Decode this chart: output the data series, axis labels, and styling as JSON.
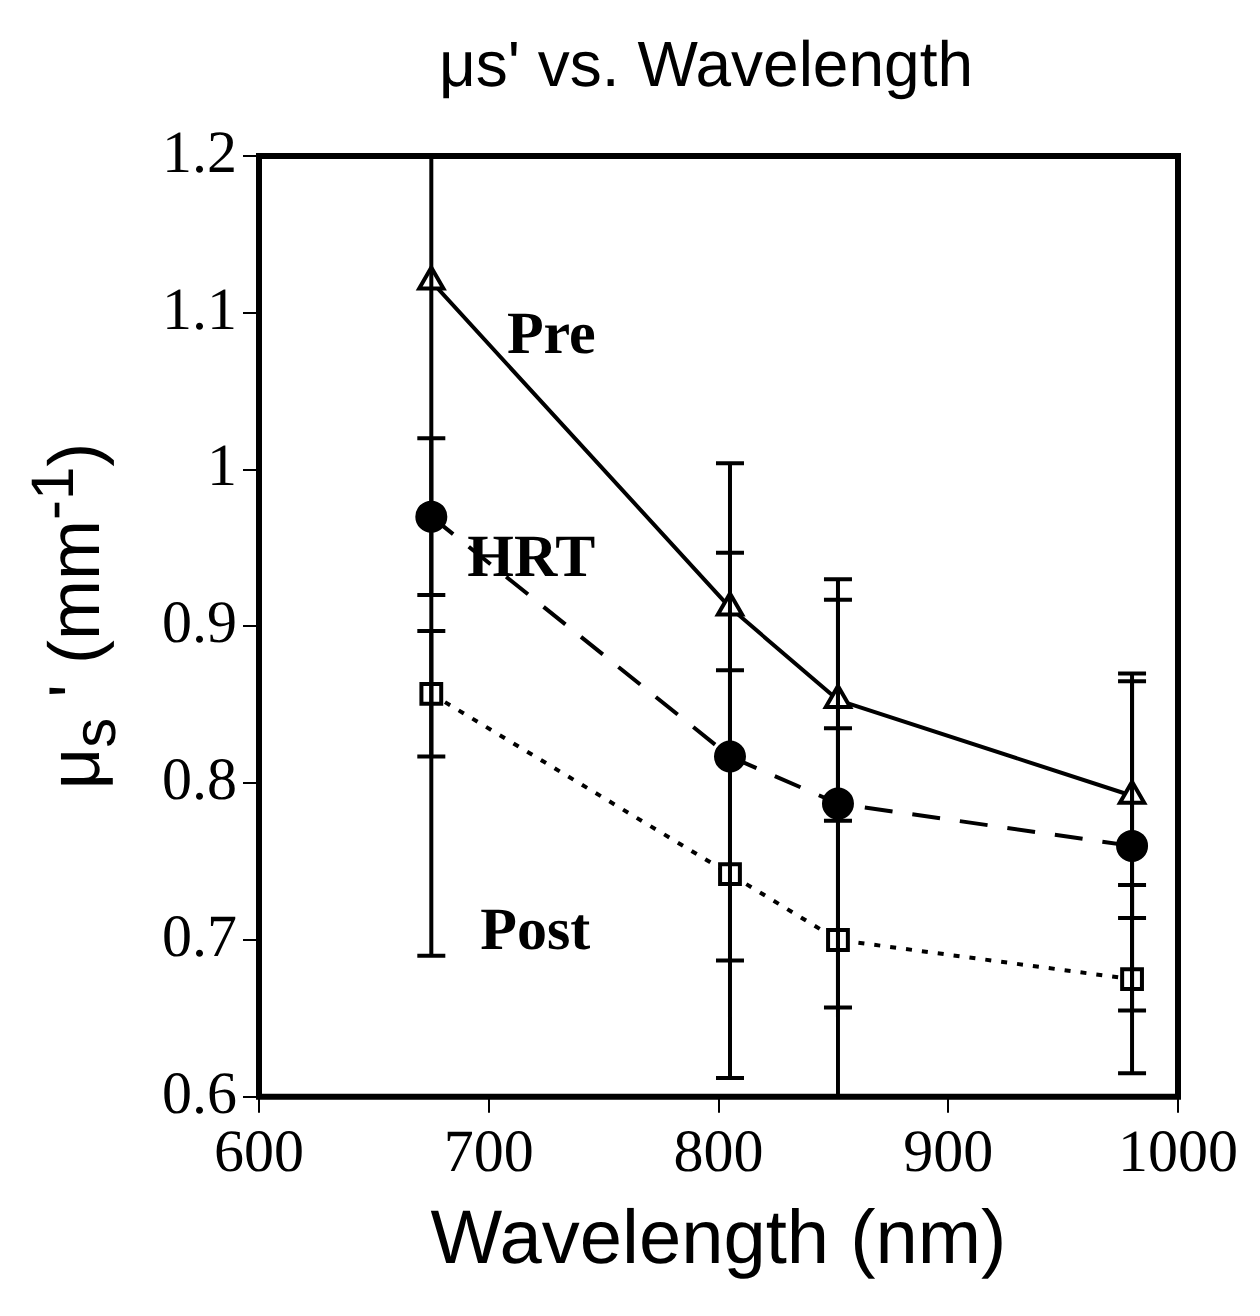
{
  "chart_data": {
    "type": "line",
    "title": "μs' vs. Wavelength",
    "xlabel": "Wavelength (nm)",
    "ylabel": "μ$_{s}$ ' (mm$^{-1}$)",
    "xlim": [
      600,
      1000
    ],
    "xticks": [
      600,
      700,
      800,
      900,
      1000
    ],
    "ylim": [
      0.6,
      1.2
    ],
    "yticks": [
      0.6,
      0.7,
      0.8,
      0.9,
      1,
      1.1,
      1.2
    ],
    "grid": false,
    "legend": false,
    "series": [
      {
        "name": "Pre",
        "color": "#000000",
        "marker": "triangle",
        "line_style": "solid",
        "x": [
          675,
          805,
          852,
          980
        ],
        "values": [
          1.12,
          0.912,
          0.853,
          0.792
        ],
        "errors": [
          [
            0.69,
            1.2
          ],
          0.092,
          0.077,
          0.078
        ]
      },
      {
        "name": "HRT",
        "color": "#000000",
        "marker": "circle",
        "line_style": "dashed",
        "x": [
          675,
          805,
          852,
          980
        ],
        "values": [
          0.97,
          0.817,
          0.787,
          0.76
        ],
        "errors": [
          0.05,
          0.13,
          0.13,
          0.105
        ]
      },
      {
        "name": "Post",
        "color": "#000000",
        "marker": "square",
        "line_style": "dotted",
        "x": [
          675,
          805,
          852,
          980
        ],
        "values": [
          0.857,
          0.742,
          0.7,
          0.675
        ],
        "errors": [
          0.04,
          0.13,
          [
            0.6,
            0.835
          ],
          0.06
        ]
      }
    ]
  }
}
